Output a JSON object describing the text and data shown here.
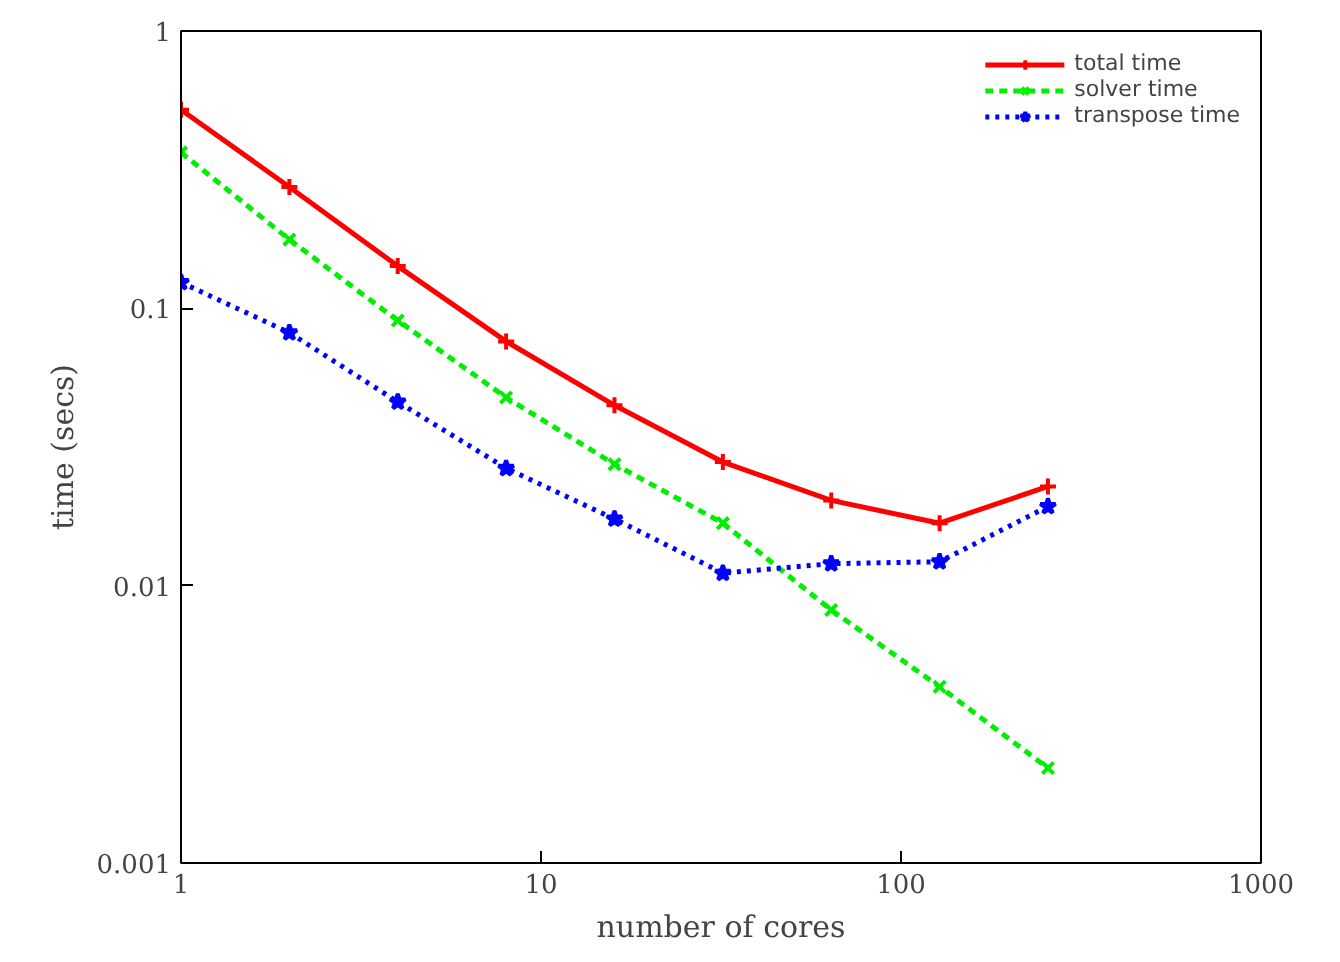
{
  "chart_data": {
    "type": "line",
    "xlabel": "number of cores",
    "ylabel": "time (secs)",
    "log": "xy",
    "x": [
      1,
      2,
      4,
      8,
      16,
      32,
      64,
      128,
      256
    ],
    "xlim": [
      1,
      1000
    ],
    "xticks": [
      1,
      10,
      100,
      1000
    ],
    "ylim": [
      0.001,
      1
    ],
    "yticks": [
      0.001,
      0.01,
      0.1,
      1
    ],
    "legend": "top right",
    "grid": false,
    "series": [
      {
        "name": "total time",
        "color": "#ff0000",
        "marker": "cross",
        "line_style": "solid",
        "values": [
          0.52,
          0.274,
          0.142,
          0.076,
          0.0447,
          0.0279,
          0.0203,
          0.0168,
          0.0228
        ]
      },
      {
        "name": "solver time",
        "color": "#00ee00",
        "marker": "x",
        "line_style": "dashed",
        "values": [
          0.365,
          0.177,
          0.0904,
          0.0477,
          0.0274,
          0.0168,
          0.00817,
          0.00432,
          0.0022
        ]
      },
      {
        "name": "transpose time",
        "color": "#0000ff",
        "marker": "star",
        "line_style": "dotted",
        "values": [
          0.124,
          0.0817,
          0.046,
          0.0265,
          0.0174,
          0.0111,
          0.012,
          0.0122,
          0.0193
        ]
      }
    ]
  }
}
